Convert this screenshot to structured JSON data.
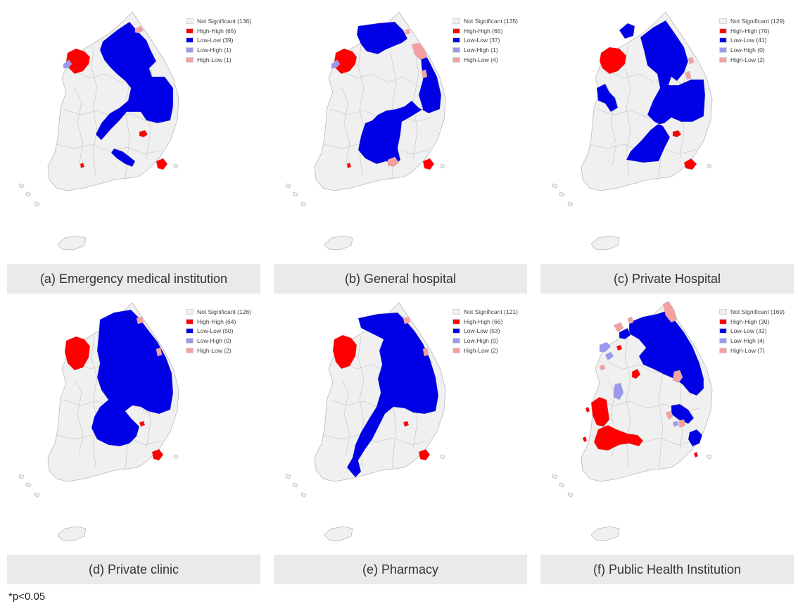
{
  "colors": {
    "Not Significant": "#f0f0f0",
    "High-High": "#ff0000",
    "Low-Low": "#0000e6",
    "Low-High": "#9999ee",
    "High-Low": "#f4a0a0",
    "border": "#b9b9b9",
    "caption_bg": "#e9eaeb"
  },
  "panels": [
    {
      "caption": "(a) Emergency medical institution",
      "legend": [
        {
          "category": "Not Significant",
          "label": "Not Significant (136)"
        },
        {
          "category": "High-High",
          "label": "High-High (65)"
        },
        {
          "category": "Low-Low",
          "label": "Low-Low (39)"
        },
        {
          "category": "Low-High",
          "label": "Low-High (1)"
        },
        {
          "category": "High-Low",
          "label": "High-Low (1)"
        }
      ]
    },
    {
      "caption": "(b) General hospital",
      "legend": [
        {
          "category": "Not Significant",
          "label": "Not Significant (135)"
        },
        {
          "category": "High-High",
          "label": "High-High (65)"
        },
        {
          "category": "Low-Low",
          "label": "Low-Low (37)"
        },
        {
          "category": "Low-High",
          "label": "Low-High (1)"
        },
        {
          "category": "High-Low",
          "label": "High-Low (4)"
        }
      ]
    },
    {
      "caption": "(c) Private Hospital",
      "legend": [
        {
          "category": "Not Significant",
          "label": "Not Significant (129)"
        },
        {
          "category": "High-High",
          "label": "High-High (70)"
        },
        {
          "category": "Low-Low",
          "label": "Low-Low (41)"
        },
        {
          "category": "Low-High",
          "label": "Low-High (0)"
        },
        {
          "category": "High-Low",
          "label": "High-Low (2)"
        }
      ]
    },
    {
      "caption": "(d) Private clinic",
      "legend": [
        {
          "category": "Not Significant",
          "label": "Not Significant (126)"
        },
        {
          "category": "High-High",
          "label": "High-High (64)"
        },
        {
          "category": "Low-Low",
          "label": "Low-Low (50)"
        },
        {
          "category": "Low-High",
          "label": "Low-High (0)"
        },
        {
          "category": "High-Low",
          "label": "High-Low (2)"
        }
      ]
    },
    {
      "caption": "(e) Pharmacy",
      "legend": [
        {
          "category": "Not Significant",
          "label": "Not Significant (121)"
        },
        {
          "category": "High-High",
          "label": "High-High (66)"
        },
        {
          "category": "Low-Low",
          "label": "Low-Low (53)"
        },
        {
          "category": "Low-High",
          "label": "Low-High (0)"
        },
        {
          "category": "High-Low",
          "label": "High-Low (2)"
        }
      ]
    },
    {
      "caption": "(f) Public Health Institution",
      "legend": [
        {
          "category": "Not Significant",
          "label": "Not Significant (169)"
        },
        {
          "category": "High-High",
          "label": "High-High (30)"
        },
        {
          "category": "Low-Low",
          "label": "Low-Low (32)"
        },
        {
          "category": "Low-High",
          "label": "Low-High (4)"
        },
        {
          "category": "High-Low",
          "label": "High-Low (7)"
        }
      ]
    }
  ],
  "footnote": "*p<0.05"
}
